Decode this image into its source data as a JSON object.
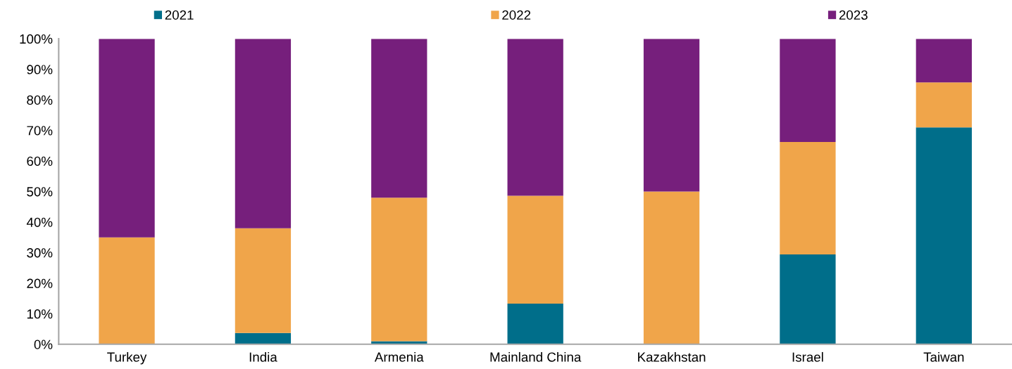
{
  "chart_data": {
    "type": "bar",
    "stacked": true,
    "categories": [
      "Turkey",
      "India",
      "Armenia",
      "Mainland China",
      "Kazakhstan",
      "Israel",
      "Taiwan"
    ],
    "series": [
      {
        "name": "2021",
        "color": "#006e8a",
        "values": [
          0,
          3.7,
          1,
          13.3,
          0,
          29.4,
          71.0
        ]
      },
      {
        "name": "2022",
        "color": "#f0a54a",
        "values": [
          35,
          34.3,
          47,
          35.3,
          50,
          36.8,
          14.7
        ]
      },
      {
        "name": "2023",
        "color": "#761f7c",
        "values": [
          65,
          62.0,
          52,
          51.4,
          50,
          33.8,
          14.3
        ]
      }
    ],
    "ylim": [
      0,
      100
    ],
    "yticks": [
      {
        "value": 0,
        "label": "0%"
      },
      {
        "value": 10,
        "label": "10%"
      },
      {
        "value": 20,
        "label": "20%"
      },
      {
        "value": 30,
        "label": "30%"
      },
      {
        "value": 40,
        "label": "40%"
      },
      {
        "value": 50,
        "label": "50%"
      },
      {
        "value": 60,
        "label": "60%"
      },
      {
        "value": 70,
        "label": "70%"
      },
      {
        "value": 80,
        "label": "80%"
      },
      {
        "value": 90,
        "label": "90%"
      },
      {
        "value": 100,
        "label": "100%"
      }
    ],
    "grid": false,
    "legend": "top"
  }
}
